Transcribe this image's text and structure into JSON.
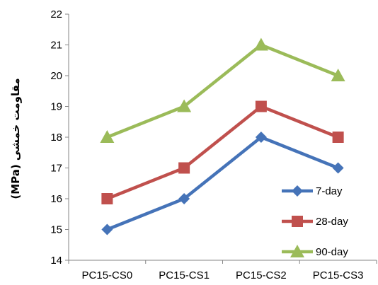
{
  "chart_data": {
    "type": "line",
    "title": "",
    "xlabel": "",
    "ylabel": "مقاومت خمشی (MPa)",
    "categories": [
      "PC15-CS0",
      "PC15-CS1",
      "PC15-CS2",
      "PC15-CS3"
    ],
    "ylim": [
      14,
      22
    ],
    "yticks": [
      14,
      15,
      16,
      17,
      18,
      19,
      20,
      21,
      22
    ],
    "grid": false,
    "legend_position": "bottom-right",
    "series": [
      {
        "name": "7-day",
        "values": [
          15,
          16,
          18,
          17
        ],
        "color": "#4573B8",
        "marker": "diamond"
      },
      {
        "name": "28-day",
        "values": [
          16,
          17,
          19,
          18
        ],
        "color": "#C0504D",
        "marker": "square"
      },
      {
        "name": "90-day",
        "values": [
          18,
          19,
          21,
          20
        ],
        "color": "#9BBB59",
        "marker": "triangle"
      }
    ]
  }
}
